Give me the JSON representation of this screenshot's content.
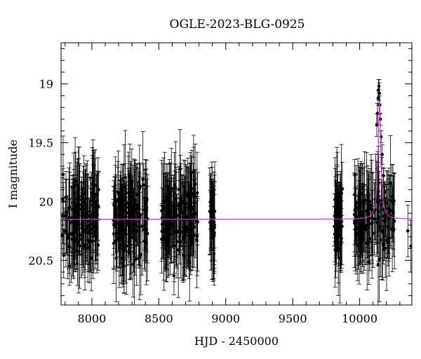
{
  "chart_data": {
    "type": "scatter",
    "title": "OGLE-2023-BLG-0925",
    "xlabel": "HJD - 2450000",
    "ylabel": "I magnitude",
    "xlim": [
      7770,
      10390
    ],
    "ylim": [
      20.88,
      18.65
    ],
    "y_inverted": true,
    "x_ticks": [
      8000,
      8500,
      9000,
      9500,
      10000
    ],
    "x_tick_labels": [
      "8000",
      "8500",
      "9000",
      "9500",
      "10000"
    ],
    "y_ticks": [
      19,
      19.5,
      20,
      20.5
    ],
    "y_tick_labels": [
      "19",
      "19.5",
      "20",
      "20.5"
    ],
    "grid": false,
    "marker_color": "#000000",
    "model_color": "#cc33cc",
    "series": [
      {
        "kind": "observations",
        "seasons": [
          {
            "start": 7780,
            "end": 8050,
            "mean_mag": 20.15,
            "scatter_mag": 0.25,
            "n": 150
          },
          {
            "start": 8160,
            "end": 8420,
            "mean_mag": 20.15,
            "scatter_mag": 0.25,
            "n": 150
          },
          {
            "start": 8520,
            "end": 8790,
            "mean_mag": 20.15,
            "scatter_mag": 0.25,
            "n": 150
          },
          {
            "start": 8880,
            "end": 8920,
            "mean_mag": 20.15,
            "scatter_mag": 0.22,
            "n": 30
          },
          {
            "start": 9810,
            "end": 9870,
            "mean_mag": 20.15,
            "scatter_mag": 0.22,
            "n": 50
          },
          {
            "start": 9960,
            "end": 10260,
            "mean_mag": 20.15,
            "scatter_mag": 0.22,
            "n": 130
          }
        ],
        "peak_points": [
          {
            "x": 10128,
            "y": 19.35
          },
          {
            "x": 10133,
            "y": 19.25
          },
          {
            "x": 10138,
            "y": 19.12
          },
          {
            "x": 10141,
            "y": 19.05
          },
          {
            "x": 10144,
            "y": 19.02
          },
          {
            "x": 10147,
            "y": 19.08
          },
          {
            "x": 10150,
            "y": 19.18
          },
          {
            "x": 10155,
            "y": 19.3
          },
          {
            "x": 10160,
            "y": 19.45
          },
          {
            "x": 10168,
            "y": 19.6
          },
          {
            "x": 10178,
            "y": 19.78
          },
          {
            "x": 10190,
            "y": 19.92
          }
        ],
        "isolated_points": [
          {
            "x": 10360,
            "y": 20.25
          },
          {
            "x": 10382,
            "y": 20.38
          }
        ]
      },
      {
        "kind": "model",
        "baseline_mag": 20.15,
        "peak_x": 10148,
        "peak_mag": 19.15,
        "width_days": 12
      }
    ]
  }
}
